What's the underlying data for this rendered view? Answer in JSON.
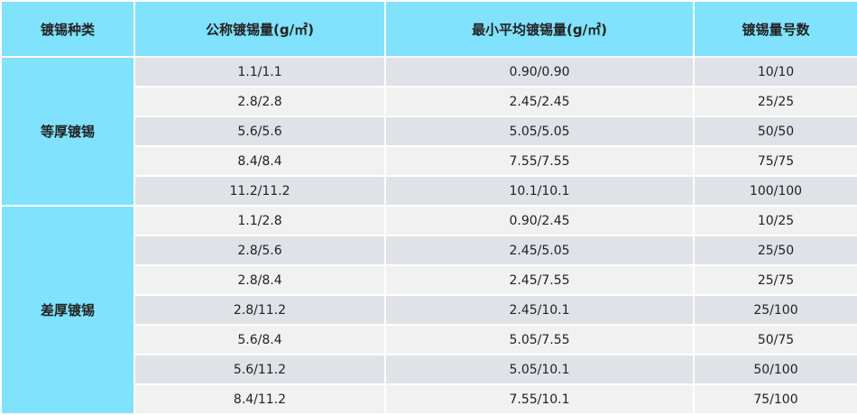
{
  "headers": [
    "镀锡种类",
    "公称镀锡量(g/㎡)",
    "最小平均镀锡量(g/㎡)",
    "镀锡量号数"
  ],
  "colors": {
    "header_bg": "#80e2fc",
    "row_dark": "#dfe2e7",
    "row_light": "#f1f1f1"
  },
  "groups": [
    {
      "type": "等厚镀锡",
      "rows": [
        [
          "1.1/1.1",
          "0.90/0.90",
          "10/10"
        ],
        [
          "2.8/2.8",
          "2.45/2.45",
          "25/25"
        ],
        [
          "5.6/5.6",
          "5.05/5.05",
          "50/50"
        ],
        [
          "8.4/8.4",
          "7.55/7.55",
          "75/75"
        ],
        [
          "11.2/11.2",
          "10.1/10.1",
          "100/100"
        ]
      ]
    },
    {
      "type": "差厚镀锡",
      "rows": [
        [
          "1.1/2.8",
          "0.90/2.45",
          "10/25"
        ],
        [
          "2.8/5.6",
          "2.45/5.05",
          "25/50"
        ],
        [
          "2.8/8.4",
          "2.45/7.55",
          "25/75"
        ],
        [
          "2.8/11.2",
          "2.45/10.1",
          "25/100"
        ],
        [
          "5.6/8.4",
          "5.05/7.55",
          "50/75"
        ],
        [
          "5.6/11.2",
          "5.05/10.1",
          "50/100"
        ],
        [
          "8.4/11.2",
          "7.55/10.1",
          "75/100"
        ]
      ]
    }
  ]
}
